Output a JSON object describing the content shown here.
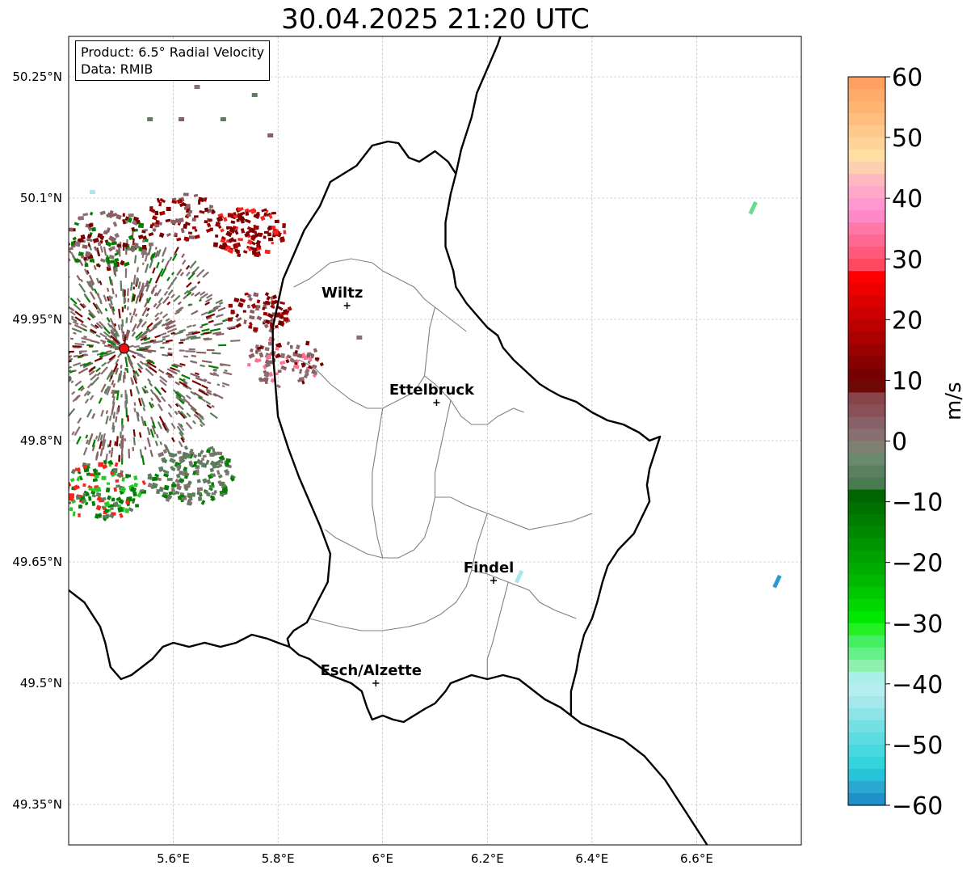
{
  "title": "30.04.2025 21:20 UTC",
  "info": {
    "product": "Product: 6.5° Radial Velocity",
    "source": "Data: RMIB"
  },
  "map_extent": {
    "lon_min": 5.4,
    "lon_max": 6.8,
    "lat_min": 49.3,
    "lat_max": 50.3
  },
  "gridlines": true,
  "x_ticks": [
    {
      "value": 5.6,
      "label": "5.6°E"
    },
    {
      "value": 5.8,
      "label": "5.8°E"
    },
    {
      "value": 6.0,
      "label": "6°E"
    },
    {
      "value": 6.2,
      "label": "6.2°E"
    },
    {
      "value": 6.4,
      "label": "6.4°E"
    },
    {
      "value": 6.6,
      "label": "6.6°E"
    }
  ],
  "y_ticks": [
    {
      "value": 50.25,
      "label": "50.25°N"
    },
    {
      "value": 50.1,
      "label": "50.1°N"
    },
    {
      "value": 49.95,
      "label": "49.95°N"
    },
    {
      "value": 49.8,
      "label": "49.8°N"
    },
    {
      "value": 49.65,
      "label": "49.65°N"
    },
    {
      "value": 49.5,
      "label": "49.5°N"
    },
    {
      "value": 49.35,
      "label": "49.35°N"
    }
  ],
  "cities": [
    {
      "name": "Wiltz",
      "lon": 5.932,
      "lat": 49.967
    },
    {
      "name": "Ettelbruck",
      "lon": 6.103,
      "lat": 49.847
    },
    {
      "name": "Findel",
      "lon": 6.212,
      "lat": 49.627
    },
    {
      "name": "Esch/Alzette",
      "lon": 5.987,
      "lat": 49.5
    }
  ],
  "radar_site": {
    "lon": 5.506,
    "lat": 49.914,
    "color": "#ee1111"
  },
  "colorbar": {
    "unit": "m/s",
    "min": -60,
    "max": 60,
    "ticks": [
      {
        "value": 60,
        "label": "60"
      },
      {
        "value": 50,
        "label": "50"
      },
      {
        "value": 40,
        "label": "40"
      },
      {
        "value": 30,
        "label": "30"
      },
      {
        "value": 20,
        "label": "20"
      },
      {
        "value": 10,
        "label": "10"
      },
      {
        "value": 0,
        "label": "0"
      },
      {
        "value": -10,
        "label": "−10"
      },
      {
        "value": -20,
        "label": "−20"
      },
      {
        "value": -30,
        "label": "−30"
      },
      {
        "value": -40,
        "label": "−40"
      },
      {
        "value": -50,
        "label": "−50"
      },
      {
        "value": -60,
        "label": "−60"
      }
    ],
    "colors_top_to_bottom": [
      "#ffa060",
      "#ffaa68",
      "#ffb472",
      "#ffbe7e",
      "#ffc88c",
      "#ffd49a",
      "#ffe0a2",
      "#ffd0b0",
      "#ffb8c0",
      "#ffa8c8",
      "#ff98d0",
      "#ff88c8",
      "#ff78a8",
      "#ff6890",
      "#ff5878",
      "#ff4860",
      "#ff0000",
      "#ee0000",
      "#dd0000",
      "#cc0000",
      "#bb0000",
      "#aa0000",
      "#990000",
      "#880000",
      "#770000",
      "#700808",
      "#884448",
      "#8a5058",
      "#876068",
      "#887070",
      "#808070",
      "#6a8a70",
      "#5a8060",
      "#4a7a50",
      "#006400",
      "#007000",
      "#007c00",
      "#008800",
      "#009400",
      "#00a000",
      "#00ac00",
      "#00b800",
      "#00c800",
      "#00d800",
      "#00e800",
      "#22f022",
      "#44f060",
      "#66f088",
      "#8ef0aa",
      "#aaf0e8",
      "#b6eef0",
      "#a4e8ec",
      "#8ce4e8",
      "#74e0e4",
      "#5cdce0",
      "#48d8e0",
      "#34d4dc",
      "#26c4d8",
      "#2aa8d0",
      "#2290c8"
    ]
  },
  "echo_colors": {
    "strong_in": "#7a0000",
    "mid_in": "#a00000",
    "weak_in": "#8a5e62",
    "near_zero": "#887074",
    "weak_out": "#5e7c5e",
    "mid_out": "#008000",
    "bright_out": "#22cc22",
    "red_dot": "#ff2020",
    "pink": "#ff7090",
    "fold_green": "#66dd88",
    "fold_cyan": "#a8e8ec",
    "fold_blue": "#2a9ad0"
  },
  "paths": {
    "national_border": [
      [
        5.822,
        49.545
      ],
      [
        5.818,
        49.555
      ],
      [
        5.83,
        49.565
      ],
      [
        5.855,
        49.575
      ],
      [
        5.875,
        49.6
      ],
      [
        5.895,
        49.625
      ],
      [
        5.9,
        49.66
      ],
      [
        5.88,
        49.695
      ],
      [
        5.86,
        49.725
      ],
      [
        5.84,
        49.755
      ],
      [
        5.82,
        49.79
      ],
      [
        5.8,
        49.83
      ],
      [
        5.795,
        49.87
      ],
      [
        5.79,
        49.91
      ],
      [
        5.79,
        49.94
      ],
      [
        5.8,
        49.97
      ],
      [
        5.81,
        50.0
      ],
      [
        5.83,
        50.03
      ],
      [
        5.85,
        50.06
      ],
      [
        5.88,
        50.09
      ],
      [
        5.9,
        50.12
      ],
      [
        5.95,
        50.14
      ],
      [
        5.98,
        50.165
      ],
      [
        6.01,
        50.17
      ],
      [
        6.03,
        50.168
      ],
      [
        6.05,
        50.15
      ],
      [
        6.07,
        50.145
      ],
      [
        6.1,
        50.158
      ],
      [
        6.125,
        50.145
      ],
      [
        6.14,
        50.13
      ],
      [
        6.13,
        50.105
      ],
      [
        6.12,
        50.07
      ],
      [
        6.12,
        50.04
      ],
      [
        6.135,
        50.01
      ],
      [
        6.14,
        49.99
      ],
      [
        6.16,
        49.97
      ],
      [
        6.18,
        49.955
      ],
      [
        6.2,
        49.94
      ],
      [
        6.22,
        49.93
      ],
      [
        6.23,
        49.915
      ],
      [
        6.25,
        49.9
      ],
      [
        6.275,
        49.885
      ],
      [
        6.3,
        49.87
      ],
      [
        6.32,
        49.862
      ],
      [
        6.34,
        49.855
      ],
      [
        6.37,
        49.848
      ],
      [
        6.4,
        49.835
      ],
      [
        6.43,
        49.825
      ],
      [
        6.46,
        49.82
      ],
      [
        6.49,
        49.81
      ],
      [
        6.51,
        49.8
      ],
      [
        6.53,
        49.805
      ],
      [
        6.52,
        49.785
      ],
      [
        6.51,
        49.765
      ],
      [
        6.505,
        49.745
      ],
      [
        6.51,
        49.725
      ],
      [
        6.495,
        49.705
      ],
      [
        6.48,
        49.685
      ],
      [
        6.45,
        49.665
      ],
      [
        6.43,
        49.645
      ],
      [
        6.42,
        49.625
      ],
      [
        6.41,
        49.6
      ],
      [
        6.4,
        49.58
      ],
      [
        6.385,
        49.56
      ],
      [
        6.375,
        49.535
      ],
      [
        6.37,
        49.515
      ],
      [
        6.36,
        49.49
      ],
      [
        6.36,
        49.46
      ],
      [
        6.34,
        49.47
      ],
      [
        6.31,
        49.48
      ],
      [
        6.29,
        49.49
      ],
      [
        6.26,
        49.505
      ],
      [
        6.23,
        49.51
      ],
      [
        6.2,
        49.505
      ],
      [
        6.17,
        49.51
      ],
      [
        6.15,
        49.505
      ],
      [
        6.13,
        49.5
      ],
      [
        6.12,
        49.49
      ],
      [
        6.1,
        49.475
      ],
      [
        6.08,
        49.468
      ],
      [
        6.06,
        49.46
      ],
      [
        6.04,
        49.452
      ],
      [
        6.02,
        49.455
      ],
      [
        6.0,
        49.46
      ],
      [
        5.98,
        49.455
      ],
      [
        5.97,
        49.47
      ],
      [
        5.96,
        49.49
      ],
      [
        5.94,
        49.5
      ],
      [
        5.92,
        49.505
      ],
      [
        5.9,
        49.51
      ],
      [
        5.88,
        49.52
      ],
      [
        5.86,
        49.53
      ],
      [
        5.84,
        49.535
      ],
      [
        5.822,
        49.545
      ]
    ],
    "fr_be_border": [
      [
        5.4,
        49.615
      ],
      [
        5.43,
        49.6
      ],
      [
        5.46,
        49.57
      ],
      [
        5.47,
        49.55
      ],
      [
        5.48,
        49.52
      ],
      [
        5.5,
        49.505
      ],
      [
        5.52,
        49.51
      ],
      [
        5.54,
        49.52
      ],
      [
        5.56,
        49.53
      ],
      [
        5.58,
        49.545
      ],
      [
        5.6,
        49.55
      ],
      [
        5.63,
        49.545
      ],
      [
        5.66,
        49.55
      ],
      [
        5.69,
        49.545
      ],
      [
        5.72,
        49.55
      ],
      [
        5.75,
        49.56
      ],
      [
        5.78,
        49.555
      ],
      [
        5.8,
        49.55
      ],
      [
        5.822,
        49.545
      ]
    ],
    "be_de_border": [
      [
        6.14,
        50.13
      ],
      [
        6.15,
        50.16
      ],
      [
        6.17,
        50.2
      ],
      [
        6.18,
        50.23
      ],
      [
        6.2,
        50.26
      ],
      [
        6.22,
        50.29
      ],
      [
        6.23,
        50.31
      ]
    ],
    "fr_de_border": [
      [
        6.36,
        49.46
      ],
      [
        6.38,
        49.45
      ],
      [
        6.42,
        49.44
      ],
      [
        6.46,
        49.43
      ],
      [
        6.5,
        49.41
      ],
      [
        6.54,
        49.38
      ],
      [
        6.56,
        49.36
      ],
      [
        6.58,
        49.34
      ],
      [
        6.6,
        49.32
      ],
      [
        6.62,
        49.3
      ]
    ],
    "cantons": [
      [
        [
          5.83,
          49.99
        ],
        [
          5.86,
          50.0
        ],
        [
          5.9,
          50.02
        ],
        [
          5.94,
          50.025
        ],
        [
          5.98,
          50.02
        ],
        [
          6.0,
          50.01
        ],
        [
          6.03,
          50.0
        ],
        [
          6.06,
          49.99
        ],
        [
          6.08,
          49.975
        ],
        [
          6.1,
          49.965
        ]
      ],
      [
        [
          6.1,
          49.965
        ],
        [
          6.12,
          49.955
        ],
        [
          6.14,
          49.945
        ],
        [
          6.16,
          49.935
        ]
      ],
      [
        [
          6.1,
          49.965
        ],
        [
          6.09,
          49.94
        ],
        [
          6.085,
          49.91
        ],
        [
          6.08,
          49.88
        ],
        [
          6.06,
          49.86
        ],
        [
          6.03,
          49.85
        ],
        [
          6.0,
          49.84
        ],
        [
          5.97,
          49.84
        ],
        [
          5.94,
          49.85
        ],
        [
          5.9,
          49.87
        ],
        [
          5.87,
          49.89
        ],
        [
          5.84,
          49.9
        ]
      ],
      [
        [
          6.08,
          49.88
        ],
        [
          6.1,
          49.87
        ],
        [
          6.13,
          49.85
        ],
        [
          6.15,
          49.83
        ],
        [
          6.17,
          49.82
        ],
        [
          6.2,
          49.82
        ],
        [
          6.22,
          49.83
        ],
        [
          6.25,
          49.84
        ],
        [
          6.27,
          49.835
        ]
      ],
      [
        [
          6.13,
          49.85
        ],
        [
          6.12,
          49.82
        ],
        [
          6.11,
          49.79
        ],
        [
          6.1,
          49.76
        ],
        [
          6.1,
          49.73
        ],
        [
          6.09,
          49.7
        ],
        [
          6.08,
          49.68
        ],
        [
          6.06,
          49.665
        ],
        [
          6.03,
          49.655
        ],
        [
          6.0,
          49.655
        ],
        [
          5.97,
          49.66
        ],
        [
          5.94,
          49.67
        ],
        [
          5.91,
          49.68
        ],
        [
          5.89,
          49.69
        ]
      ],
      [
        [
          6.1,
          49.73
        ],
        [
          6.13,
          49.73
        ],
        [
          6.16,
          49.72
        ],
        [
          6.2,
          49.71
        ],
        [
          6.24,
          49.7
        ],
        [
          6.28,
          49.69
        ],
        [
          6.32,
          49.695
        ],
        [
          6.36,
          49.7
        ],
        [
          6.4,
          49.71
        ]
      ],
      [
        [
          6.2,
          49.71
        ],
        [
          6.19,
          49.69
        ],
        [
          6.18,
          49.67
        ],
        [
          6.17,
          49.64
        ],
        [
          6.16,
          49.62
        ],
        [
          6.14,
          49.6
        ],
        [
          6.11,
          49.585
        ],
        [
          6.08,
          49.575
        ],
        [
          6.05,
          49.57
        ],
        [
          6.0,
          49.565
        ],
        [
          5.96,
          49.565
        ],
        [
          5.92,
          49.57
        ],
        [
          5.89,
          49.575
        ],
        [
          5.86,
          49.58
        ]
      ],
      [
        [
          6.17,
          49.64
        ],
        [
          6.2,
          49.635
        ],
        [
          6.24,
          49.625
        ],
        [
          6.28,
          49.615
        ],
        [
          6.3,
          49.6
        ],
        [
          6.33,
          49.59
        ],
        [
          6.37,
          49.58
        ]
      ],
      [
        [
          6.24,
          49.625
        ],
        [
          6.23,
          49.6
        ],
        [
          6.22,
          49.575
        ],
        [
          6.21,
          49.55
        ],
        [
          6.2,
          49.53
        ],
        [
          6.2,
          49.505
        ]
      ],
      [
        [
          6.0,
          49.84
        ],
        [
          5.99,
          49.8
        ],
        [
          5.98,
          49.76
        ],
        [
          5.98,
          49.72
        ],
        [
          5.99,
          49.68
        ],
        [
          6.0,
          49.655
        ]
      ]
    ]
  },
  "echo_patches": [
    {
      "cx": 5.74,
      "cy": 50.06,
      "r": 0.06,
      "n": 120,
      "colors": [
        "strong_in",
        "mid_in",
        "strong_in",
        "red_dot"
      ]
    },
    {
      "cx": 5.62,
      "cy": 50.08,
      "r": 0.06,
      "n": 70,
      "colors": [
        "strong_in",
        "mid_in",
        "weak_in"
      ]
    },
    {
      "cx": 5.76,
      "cy": 49.96,
      "r": 0.05,
      "n": 70,
      "colors": [
        "strong_in",
        "weak_in",
        "mid_in"
      ]
    },
    {
      "cx": 5.81,
      "cy": 49.9,
      "r": 0.06,
      "n": 90,
      "colors": [
        "weak_in",
        "near_zero",
        "strong_in",
        "pink"
      ]
    },
    {
      "cx": 5.63,
      "cy": 49.76,
      "r": 0.07,
      "n": 160,
      "colors": [
        "weak_out",
        "weak_out",
        "mid_out",
        "near_zero"
      ]
    },
    {
      "cx": 5.46,
      "cy": 49.74,
      "r": 0.07,
      "n": 150,
      "colors": [
        "mid_out",
        "bright_out",
        "mid_out",
        "weak_out",
        "red_dot"
      ]
    },
    {
      "cx": 5.47,
      "cy": 50.05,
      "r": 0.07,
      "n": 120,
      "colors": [
        "weak_in",
        "near_zero",
        "strong_in",
        "mid_out"
      ]
    }
  ]
}
